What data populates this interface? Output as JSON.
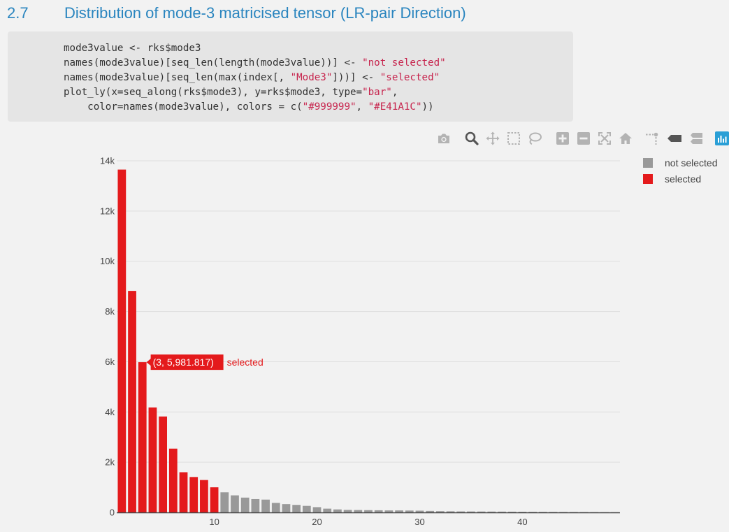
{
  "section": {
    "number": "2.7",
    "title": "Distribution of mode-3 matricised tensor (LR-pair Direction)"
  },
  "code": {
    "lines": [
      [
        {
          "t": "mode3value <- rks$mode3"
        }
      ],
      [
        {
          "t": "names(mode3value)[seq_len(length(mode3value))] <- "
        },
        {
          "t": "\"not selected\"",
          "s": true
        }
      ],
      [
        {
          "t": "names(mode3value)[seq_len(max(index[, "
        },
        {
          "t": "\"Mode3\"",
          "s": true
        },
        {
          "t": "]))] <- "
        },
        {
          "t": "\"selected\"",
          "s": true
        }
      ],
      [
        {
          "t": "plot_ly(x=seq_along(rks$mode3), y=rks$mode3, type="
        },
        {
          "t": "\"bar\"",
          "s": true
        },
        {
          "t": ","
        }
      ],
      [
        {
          "t": "    color=names(mode3value), colors = c("
        },
        {
          "t": "\"#999999\"",
          "s": true
        },
        {
          "t": ", "
        },
        {
          "t": "\"#E41A1C\"",
          "s": true
        },
        {
          "t": "))"
        }
      ]
    ]
  },
  "toolbar": {
    "icons": [
      "camera-icon",
      "zoom-icon",
      "pan-icon",
      "box-select-icon",
      "lasso-select-icon",
      "zoom-in-icon",
      "zoom-out-icon",
      "autoscale-icon",
      "reset-axes-icon",
      "spike-lines-icon",
      "hover-closest-icon",
      "hover-compare-icon",
      "plotly-logo-icon"
    ]
  },
  "legend": [
    {
      "label": "not selected",
      "color": "#999999"
    },
    {
      "label": "selected",
      "color": "#E41A1C"
    }
  ],
  "hover": {
    "text": "(3, 5,981.817)",
    "series": "selected"
  },
  "chart_data": {
    "type": "bar",
    "x": [
      1,
      2,
      3,
      4,
      5,
      6,
      7,
      8,
      9,
      10,
      11,
      12,
      13,
      14,
      15,
      16,
      17,
      18,
      19,
      20,
      21,
      22,
      23,
      24,
      25,
      26,
      27,
      28,
      29,
      30,
      31,
      32,
      33,
      34,
      35,
      36,
      37,
      38,
      39,
      40,
      41,
      42,
      43,
      44,
      45,
      46,
      47,
      48,
      49
    ],
    "series": [
      {
        "name": "selected",
        "color": "#E41A1C",
        "x": [
          1,
          2,
          3,
          4,
          5,
          6,
          7,
          8,
          9,
          10
        ],
        "values": [
          13650,
          8820,
          5981.817,
          4180,
          3820,
          2540,
          1600,
          1410,
          1290,
          1000
        ]
      },
      {
        "name": "not selected",
        "color": "#999999",
        "x": [
          11,
          12,
          13,
          14,
          15,
          16,
          17,
          18,
          19,
          20,
          21,
          22,
          23,
          24,
          25,
          26,
          27,
          28,
          29,
          30,
          31,
          32,
          33,
          34,
          35,
          36,
          37,
          38,
          39,
          40,
          41,
          42,
          43,
          44,
          45,
          46,
          47,
          48,
          49
        ],
        "values": [
          800,
          680,
          590,
          530,
          510,
          380,
          330,
          300,
          260,
          210,
          150,
          120,
          100,
          95,
          90,
          85,
          80,
          80,
          75,
          70,
          60,
          50,
          45,
          40,
          38,
          36,
          34,
          32,
          30,
          28,
          26,
          24,
          22,
          20,
          18,
          16,
          14,
          12,
          10
        ]
      }
    ],
    "xticks": [
      10,
      20,
      30,
      40
    ],
    "yticks": [
      0,
      2000,
      4000,
      6000,
      8000,
      10000,
      12000,
      14000
    ],
    "ytick_labels": [
      "0",
      "2k",
      "4k",
      "6k",
      "8k",
      "10k",
      "12k",
      "14k"
    ],
    "xlim": [
      0.5,
      49.5
    ],
    "ylim": [
      0,
      14000
    ],
    "grid": true,
    "legend_position": "top-right"
  }
}
